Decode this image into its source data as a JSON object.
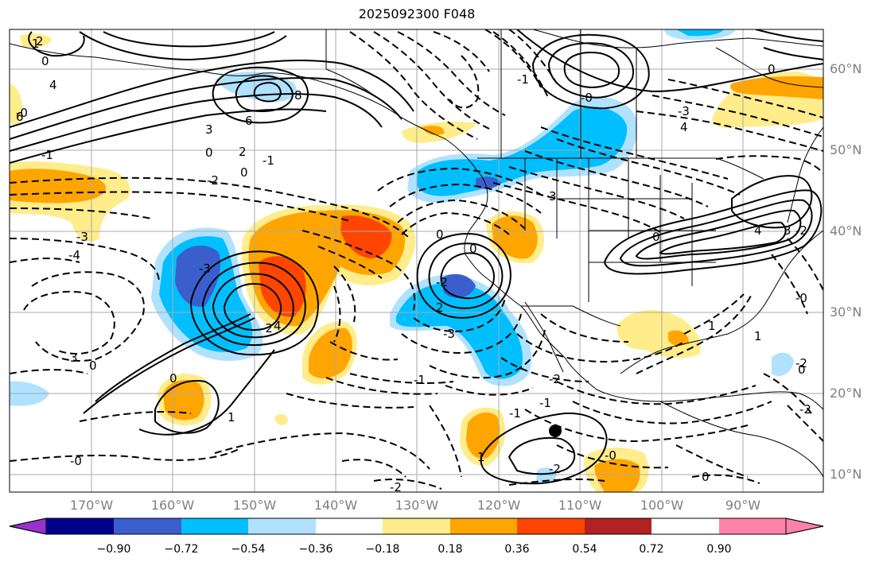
{
  "title": "2025092300 F048",
  "latitude_labels": [
    "60°N",
    "50°N",
    "40°N",
    "30°N",
    "20°N",
    "10°N"
  ],
  "longitude_labels": [
    "170°W",
    "160°W",
    "150°W",
    "140°W",
    "130°W",
    "120°W",
    "110°W",
    "100°W",
    "90°W"
  ],
  "colorbar": {
    "ticks": [
      "−0.90",
      "−0.72",
      "−0.54",
      "−0.36",
      "−0.18",
      "0.18",
      "0.36",
      "0.54",
      "0.72",
      "0.90"
    ],
    "colors": [
      "#9932cc",
      "#00008b",
      "#3a5fcd",
      "#00bfff",
      "#b0e2ff",
      "#ffffff",
      "#ffec8b",
      "#ffa500",
      "#ff4500",
      "#b22222",
      "#ff82ab"
    ]
  },
  "contour_labels": [
    "2",
    "0",
    "4",
    "8",
    "6",
    "3",
    "2",
    "0",
    "-2",
    "-3",
    "-4",
    "-3",
    "-2",
    "4",
    "3",
    "0",
    "-1",
    "-1",
    "0",
    "1",
    "0",
    "-2",
    "0",
    "2",
    "3",
    "-3",
    "-2",
    "-1",
    "-2",
    "-0",
    "0",
    "1",
    "0",
    "-1",
    "-0",
    "1",
    "0",
    "4",
    "1",
    "-2",
    "0",
    "-2",
    "1",
    "-0",
    "-2",
    "-0",
    "-3",
    "4",
    "-2",
    "3",
    "6",
    "0",
    "-1",
    "-0",
    "-1"
  ],
  "marker": {
    "name": "black-dot"
  }
}
